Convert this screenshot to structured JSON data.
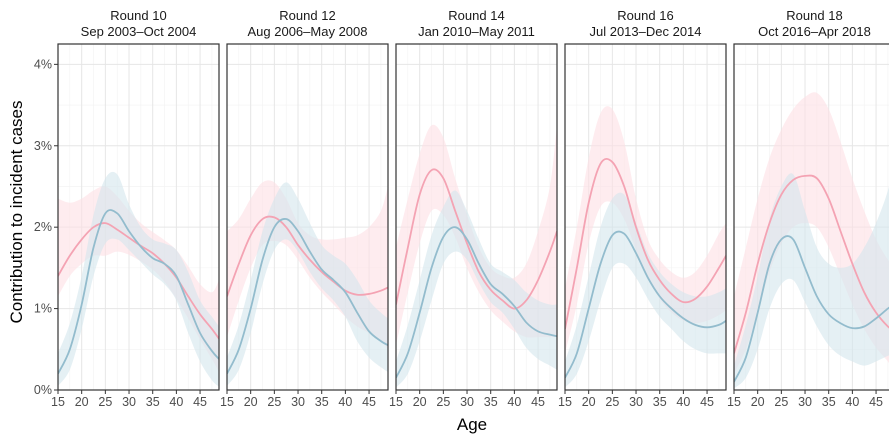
{
  "chart_data": {
    "type": "line",
    "ylabel": "Contribution to incident cases",
    "xlabel": "Age",
    "xlim": [
      15,
      49
    ],
    "ylim": [
      0,
      4.25
    ],
    "xticks": [
      15,
      20,
      25,
      30,
      35,
      40,
      45
    ],
    "yticks": [
      0,
      1,
      2,
      3,
      4
    ],
    "ytick_labels": [
      "0%",
      "1%",
      "2%",
      "3%",
      "4%"
    ],
    "y_unit": "%",
    "grid": true,
    "colors": {
      "pink": "#f4a3b3",
      "pink_band": "#fde0e5",
      "blue": "#93bccd",
      "blue_band": "#d3e6ed"
    },
    "panels": [
      {
        "title": "Round 10",
        "subtitle": "Sep 2003–Oct 2004",
        "pink": {
          "x": [
            15,
            17.5,
            20,
            22.5,
            25,
            27.5,
            30,
            32.5,
            35,
            37.5,
            40,
            42.5,
            45,
            47.5,
            49
          ],
          "y": [
            1.4,
            1.65,
            1.85,
            2.0,
            2.05,
            1.97,
            1.87,
            1.77,
            1.68,
            1.55,
            1.38,
            1.15,
            0.93,
            0.75,
            0.63
          ],
          "lo": [
            1.15,
            1.4,
            1.55,
            1.65,
            1.65,
            1.7,
            1.66,
            1.58,
            1.48,
            1.33,
            1.12,
            0.88,
            0.62,
            0.38,
            0.22
          ],
          "hi": [
            2.35,
            2.3,
            2.35,
            2.45,
            2.5,
            2.38,
            2.2,
            2.05,
            1.94,
            1.84,
            1.72,
            1.52,
            1.3,
            1.2,
            1.35
          ]
        },
        "blue": {
          "x": [
            15,
            17.5,
            20,
            22.5,
            25,
            27.5,
            30,
            32.5,
            35,
            37.5,
            40,
            42.5,
            45,
            47.5,
            49
          ],
          "y": [
            0.2,
            0.5,
            1.05,
            1.75,
            2.17,
            2.17,
            1.95,
            1.76,
            1.62,
            1.55,
            1.4,
            1.05,
            0.7,
            0.48,
            0.38
          ],
          "lo": [
            0.05,
            0.25,
            0.75,
            1.4,
            1.8,
            1.85,
            1.72,
            1.57,
            1.42,
            1.3,
            1.1,
            0.7,
            0.35,
            0.12,
            0.04
          ],
          "hi": [
            0.45,
            0.82,
            1.4,
            2.15,
            2.6,
            2.65,
            2.28,
            2.0,
            1.85,
            1.8,
            1.72,
            1.45,
            1.1,
            0.9,
            0.78
          ]
        }
      },
      {
        "title": "Round 12",
        "subtitle": "Aug 2006–May 2008",
        "pink": {
          "x": [
            15,
            17.5,
            20,
            22.5,
            25,
            27.5,
            30,
            32.5,
            35,
            37.5,
            40,
            42.5,
            45,
            47.5,
            49
          ],
          "y": [
            1.15,
            1.55,
            1.9,
            2.1,
            2.12,
            2.0,
            1.78,
            1.6,
            1.45,
            1.33,
            1.22,
            1.17,
            1.18,
            1.22,
            1.26
          ],
          "lo": [
            0.65,
            1.1,
            1.5,
            1.78,
            1.83,
            1.78,
            1.6,
            1.38,
            1.2,
            1.05,
            0.9,
            0.78,
            0.7,
            0.6,
            0.5
          ],
          "hi": [
            1.95,
            2.1,
            2.35,
            2.55,
            2.55,
            2.35,
            2.05,
            1.9,
            1.85,
            1.85,
            1.87,
            1.9,
            2.0,
            2.2,
            2.5
          ]
        },
        "blue": {
          "x": [
            15,
            17.5,
            20,
            22.5,
            25,
            27.5,
            30,
            32.5,
            35,
            37.5,
            40,
            42.5,
            45,
            47.5,
            49
          ],
          "y": [
            0.2,
            0.5,
            1.0,
            1.6,
            2.0,
            2.1,
            1.95,
            1.7,
            1.48,
            1.35,
            1.2,
            0.95,
            0.72,
            0.6,
            0.55
          ],
          "lo": [
            0.05,
            0.25,
            0.7,
            1.3,
            1.72,
            1.85,
            1.7,
            1.45,
            1.25,
            1.1,
            0.9,
            0.6,
            0.4,
            0.28,
            0.22
          ],
          "hi": [
            0.4,
            0.8,
            1.35,
            1.95,
            2.35,
            2.55,
            2.35,
            2.05,
            1.78,
            1.65,
            1.55,
            1.35,
            1.1,
            0.95,
            0.88
          ]
        }
      },
      {
        "title": "Round 14",
        "subtitle": "Jan 2010–May 2011",
        "pink": {
          "x": [
            15,
            17.5,
            20,
            22.5,
            25,
            27.5,
            30,
            32.5,
            35,
            37.5,
            40,
            42.5,
            45,
            47.5,
            49
          ],
          "y": [
            1.05,
            1.75,
            2.4,
            2.7,
            2.6,
            2.2,
            1.8,
            1.45,
            1.23,
            1.1,
            1.0,
            1.1,
            1.35,
            1.7,
            1.95
          ],
          "lo": [
            0.55,
            1.2,
            1.8,
            2.2,
            2.15,
            1.88,
            1.5,
            1.2,
            0.98,
            0.84,
            0.72,
            0.65,
            0.65,
            0.65,
            0.65
          ],
          "hi": [
            1.75,
            2.35,
            2.9,
            3.25,
            3.1,
            2.6,
            2.15,
            1.75,
            1.5,
            1.4,
            1.38,
            1.55,
            1.95,
            2.5,
            3.25
          ]
        },
        "blue": {
          "x": [
            15,
            17.5,
            20,
            22.5,
            25,
            27.5,
            30,
            32.5,
            35,
            37.5,
            40,
            42.5,
            45,
            47.5,
            49
          ],
          "y": [
            0.15,
            0.45,
            0.95,
            1.5,
            1.88,
            2.0,
            1.85,
            1.55,
            1.3,
            1.18,
            1.03,
            0.83,
            0.72,
            0.68,
            0.66
          ],
          "lo": [
            0.03,
            0.2,
            0.6,
            1.1,
            1.55,
            1.7,
            1.6,
            1.32,
            1.08,
            0.95,
            0.75,
            0.52,
            0.38,
            0.3,
            0.25
          ],
          "hi": [
            0.35,
            0.8,
            1.35,
            1.9,
            2.25,
            2.45,
            2.2,
            1.85,
            1.55,
            1.45,
            1.35,
            1.2,
            1.1,
            1.05,
            1.05
          ]
        }
      },
      {
        "title": "Round 16",
        "subtitle": "Jul 2013–Dec 2014",
        "pink": {
          "x": [
            15,
            17.5,
            20,
            22.5,
            25,
            27.5,
            30,
            32.5,
            35,
            37.5,
            40,
            42.5,
            45,
            47.5,
            49
          ],
          "y": [
            0.75,
            1.5,
            2.3,
            2.78,
            2.8,
            2.5,
            2.0,
            1.6,
            1.35,
            1.18,
            1.08,
            1.12,
            1.27,
            1.5,
            1.65
          ],
          "lo": [
            0.45,
            1.05,
            1.8,
            2.25,
            2.3,
            2.1,
            1.72,
            1.38,
            1.12,
            0.95,
            0.85,
            0.82,
            0.85,
            0.92,
            0.98
          ],
          "hi": [
            1.25,
            2.0,
            2.85,
            3.4,
            3.45,
            3.05,
            2.35,
            1.85,
            1.6,
            1.45,
            1.38,
            1.45,
            1.65,
            1.92,
            2.05
          ]
        },
        "blue": {
          "x": [
            15,
            17.5,
            20,
            22.5,
            25,
            27.5,
            30,
            32.5,
            35,
            37.5,
            40,
            42.5,
            45,
            47.5,
            49
          ],
          "y": [
            0.15,
            0.45,
            1.0,
            1.55,
            1.9,
            1.92,
            1.68,
            1.38,
            1.15,
            1.0,
            0.88,
            0.8,
            0.77,
            0.8,
            0.85
          ],
          "lo": [
            0.03,
            0.2,
            0.6,
            1.1,
            1.5,
            1.55,
            1.38,
            1.12,
            0.9,
            0.75,
            0.6,
            0.5,
            0.45,
            0.45,
            0.45
          ],
          "hi": [
            0.35,
            0.8,
            1.4,
            2.0,
            2.35,
            2.4,
            2.05,
            1.68,
            1.45,
            1.3,
            1.2,
            1.15,
            1.15,
            1.2,
            1.25
          ]
        }
      },
      {
        "title": "Round 18",
        "subtitle": "Oct 2016–Apr 2018",
        "pink": {
          "x": [
            15,
            17.5,
            20,
            22.5,
            25,
            27.5,
            30,
            32.5,
            35,
            37.5,
            40,
            42.5,
            45,
            47.5,
            49
          ],
          "y": [
            0.45,
            0.95,
            1.55,
            2.05,
            2.4,
            2.58,
            2.63,
            2.6,
            2.35,
            1.95,
            1.55,
            1.2,
            0.95,
            0.78,
            0.72
          ],
          "lo": [
            0.2,
            0.5,
            0.95,
            1.45,
            1.8,
            2.0,
            2.05,
            2.0,
            1.75,
            1.4,
            1.05,
            0.75,
            0.52,
            0.35,
            0.22
          ],
          "hi": [
            1.15,
            1.75,
            2.35,
            2.85,
            3.2,
            3.45,
            3.6,
            3.65,
            3.45,
            3.05,
            2.6,
            2.2,
            1.85,
            1.6,
            1.5
          ]
        },
        "blue": {
          "x": [
            15,
            17.5,
            20,
            22.5,
            25,
            27.5,
            30,
            32.5,
            35,
            37.5,
            40,
            42.5,
            45,
            47.5,
            49
          ],
          "y": [
            0.1,
            0.4,
            0.95,
            1.55,
            1.85,
            1.85,
            1.5,
            1.15,
            0.93,
            0.82,
            0.76,
            0.78,
            0.88,
            1.0,
            1.06
          ],
          "lo": [
            0.02,
            0.15,
            0.5,
            1.0,
            1.3,
            1.35,
            1.08,
            0.78,
            0.55,
            0.42,
            0.35,
            0.3,
            0.35,
            0.42,
            0.45
          ],
          "hi": [
            0.3,
            0.8,
            1.4,
            2.1,
            2.5,
            2.65,
            2.2,
            1.75,
            1.55,
            1.5,
            1.55,
            1.75,
            2.05,
            2.45,
            2.85
          ]
        }
      }
    ]
  }
}
